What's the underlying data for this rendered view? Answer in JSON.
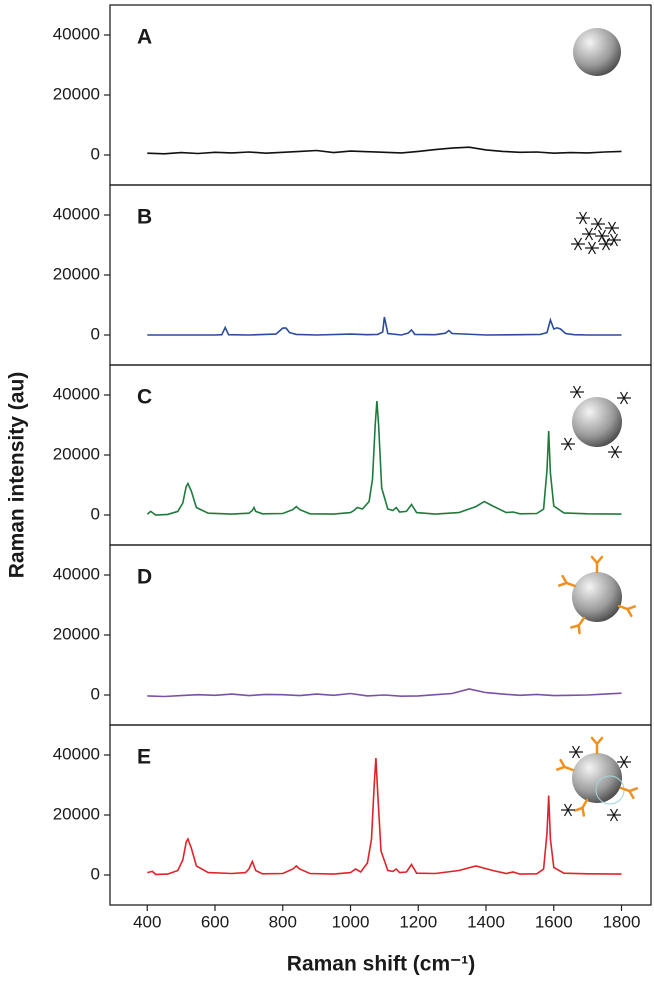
{
  "chart_data": [
    {
      "type": "line",
      "annotation": "A",
      "xlim": [
        290,
        1890
      ],
      "ylim": [
        -10000,
        50000
      ],
      "yticks": [
        0,
        20000,
        40000
      ],
      "x": [
        400,
        450,
        500,
        550,
        600,
        650,
        700,
        750,
        800,
        850,
        900,
        950,
        1000,
        1050,
        1100,
        1150,
        1200,
        1250,
        1300,
        1350,
        1400,
        1450,
        1500,
        1550,
        1600,
        1650,
        1700,
        1750,
        1800
      ],
      "series": [
        {
          "color": "#111111",
          "values": [
            600,
            400,
            800,
            500,
            900,
            700,
            1000,
            600,
            900,
            1200,
            1500,
            800,
            1300,
            1100,
            900,
            700,
            1200,
            1800,
            2300,
            2600,
            1700,
            1200,
            900,
            1000,
            600,
            800,
            700,
            1000,
            1200
          ]
        }
      ]
    },
    {
      "type": "line",
      "annotation": "B",
      "xlim": [
        290,
        1890
      ],
      "ylim": [
        -10000,
        50000
      ],
      "yticks": [
        0,
        20000,
        40000
      ],
      "x": [
        400,
        500,
        600,
        620,
        630,
        640,
        700,
        780,
        800,
        810,
        820,
        840,
        900,
        1000,
        1050,
        1080,
        1095,
        1100,
        1110,
        1150,
        1170,
        1180,
        1190,
        1250,
        1280,
        1290,
        1300,
        1400,
        1500,
        1560,
        1580,
        1590,
        1600,
        1610,
        1620,
        1635,
        1660,
        1700,
        1800
      ],
      "series": [
        {
          "color": "#2b4c9b",
          "values": [
            0,
            0,
            0,
            100,
            2500,
            100,
            0,
            300,
            2300,
            2300,
            800,
            200,
            0,
            300,
            100,
            200,
            1000,
            6000,
            500,
            0,
            600,
            1700,
            200,
            100,
            600,
            1500,
            500,
            0,
            100,
            200,
            800,
            5000,
            2000,
            2400,
            2000,
            500,
            100,
            0,
            0
          ]
        }
      ]
    },
    {
      "type": "line",
      "annotation": "C",
      "ylabel": "Raman intensity (au)",
      "xlim": [
        290,
        1890
      ],
      "ylim": [
        -10000,
        50000
      ],
      "yticks": [
        0,
        20000,
        40000
      ],
      "x": [
        400,
        410,
        425,
        460,
        490,
        505,
        515,
        520,
        530,
        545,
        580,
        650,
        700,
        710,
        715,
        720,
        740,
        800,
        830,
        840,
        850,
        880,
        950,
        1000,
        1010,
        1020,
        1035,
        1055,
        1065,
        1073,
        1078,
        1083,
        1092,
        1110,
        1125,
        1135,
        1145,
        1165,
        1180,
        1195,
        1250,
        1320,
        1370,
        1395,
        1420,
        1460,
        1480,
        1500,
        1550,
        1570,
        1580,
        1585,
        1590,
        1600,
        1630,
        1700,
        1800
      ],
      "series": [
        {
          "color": "#1f7a3c",
          "values": [
            300,
            1200,
            0,
            200,
            1200,
            4000,
            9500,
            10500,
            8000,
            2500,
            600,
            300,
            600,
            1500,
            2500,
            1200,
            400,
            500,
            1800,
            2800,
            1800,
            400,
            300,
            800,
            1500,
            2500,
            2000,
            4500,
            12000,
            30000,
            38000,
            30000,
            9000,
            2000,
            1500,
            2500,
            1000,
            1200,
            3500,
            800,
            300,
            800,
            2800,
            4500,
            3000,
            800,
            1000,
            400,
            500,
            2000,
            15000,
            28000,
            14000,
            3000,
            700,
            400,
            300
          ]
        }
      ]
    },
    {
      "type": "line",
      "annotation": "D",
      "xlim": [
        290,
        1890
      ],
      "ylim": [
        -10000,
        50000
      ],
      "yticks": [
        0,
        20000,
        40000
      ],
      "x": [
        400,
        450,
        500,
        550,
        600,
        650,
        700,
        750,
        800,
        850,
        900,
        950,
        1000,
        1050,
        1100,
        1150,
        1200,
        1250,
        1300,
        1350,
        1400,
        1450,
        1500,
        1550,
        1600,
        1650,
        1700,
        1750,
        1800
      ],
      "series": [
        {
          "color": "#7b52a3",
          "values": [
            -300,
            -500,
            -200,
            100,
            -100,
            300,
            -200,
            200,
            100,
            -200,
            300,
            -100,
            500,
            -300,
            0,
            -400,
            -300,
            100,
            500,
            2000,
            800,
            300,
            -100,
            200,
            -200,
            -100,
            0,
            300,
            600
          ]
        }
      ]
    },
    {
      "type": "line",
      "annotation": "E",
      "xlabel": "Raman shift (cm⁻¹)",
      "xlim": [
        290,
        1890
      ],
      "ylim": [
        -10000,
        50000
      ],
      "yticks": [
        0,
        20000,
        40000
      ],
      "xticks": [
        400,
        600,
        800,
        1000,
        1200,
        1400,
        1600,
        1800
      ],
      "x": [
        400,
        415,
        425,
        460,
        490,
        505,
        515,
        520,
        530,
        545,
        580,
        650,
        690,
        700,
        710,
        720,
        740,
        800,
        830,
        840,
        850,
        880,
        950,
        1000,
        1015,
        1030,
        1050,
        1062,
        1070,
        1075,
        1080,
        1090,
        1110,
        1125,
        1135,
        1145,
        1165,
        1180,
        1195,
        1250,
        1320,
        1370,
        1420,
        1460,
        1480,
        1500,
        1550,
        1570,
        1580,
        1585,
        1590,
        1600,
        1630,
        1700,
        1800
      ],
      "series": [
        {
          "color": "#e0232b",
          "values": [
            800,
            1200,
            200,
            300,
            1500,
            5000,
            11000,
            12000,
            9000,
            3000,
            800,
            500,
            800,
            2000,
            4500,
            1500,
            400,
            500,
            2000,
            3000,
            2000,
            500,
            300,
            800,
            2000,
            1000,
            4000,
            12000,
            30000,
            39000,
            28000,
            8000,
            1500,
            1200,
            2000,
            800,
            1000,
            3500,
            600,
            500,
            1500,
            3000,
            1500,
            500,
            1000,
            300,
            400,
            2000,
            14000,
            26500,
            12000,
            2500,
            600,
            400,
            300
          ]
        }
      ]
    }
  ]
}
